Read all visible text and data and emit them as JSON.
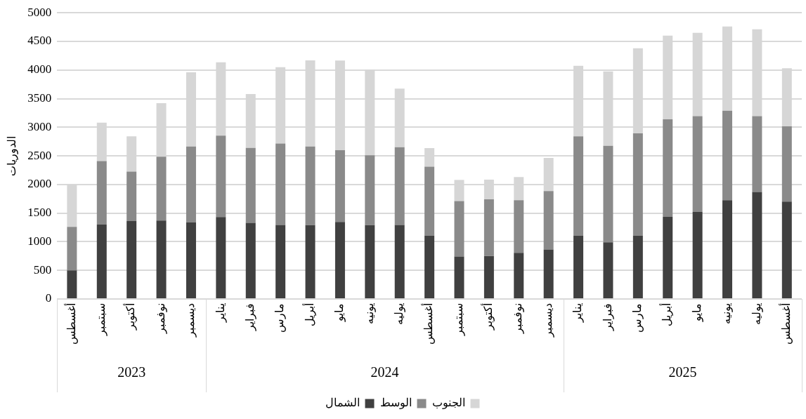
{
  "chart_data": {
    "type": "bar",
    "stacked": true,
    "ylabel": "الدوريات",
    "categories": [
      "أغسطس",
      "سبتمبر",
      "أكتوبر",
      "نوفمبر",
      "ديسمبر",
      "يناير",
      "فبراير",
      "مارس",
      "أبريل",
      "مايو",
      "يونيه",
      "يوليه",
      "أغسطس",
      "سبتمبر",
      "أكتوبر",
      "نوفمبر",
      "ديسمبر",
      "يناير",
      "فبراير",
      "مارس",
      "أبريل",
      "مايو",
      "يونيه",
      "يوليه",
      "أغسطس"
    ],
    "series": [
      {
        "name": "الشمال",
        "color": "#404040",
        "values": [
          500,
          1300,
          1360,
          1370,
          1335,
          1430,
          1330,
          1295,
          1290,
          1345,
          1290,
          1295,
          1105,
          740,
          750,
          805,
          865,
          1105,
          990,
          1105,
          1435,
          1520,
          1725,
          1870,
          1700
        ]
      },
      {
        "name": "الوسط",
        "color": "#8a8a8a",
        "values": [
          760,
          1110,
          865,
          1115,
          1330,
          1425,
          1310,
          1420,
          1375,
          1255,
          1220,
          1355,
          1205,
          970,
          990,
          920,
          1020,
          1735,
          1685,
          1790,
          1705,
          1675,
          1565,
          1325,
          1315
        ]
      },
      {
        "name": "الجنوب",
        "color": "#d6d6d6",
        "values": [
          740,
          670,
          615,
          935,
          1295,
          1280,
          940,
          1335,
          1505,
          1565,
          1495,
          1025,
          325,
          370,
          345,
          405,
          580,
          1235,
          1300,
          1485,
          1460,
          1455,
          1470,
          1515,
          1015
        ]
      }
    ],
    "ylim": [
      0,
      5000
    ],
    "yticks": [
      0,
      500,
      1000,
      1500,
      2000,
      2500,
      3000,
      3500,
      4000,
      4500,
      5000
    ],
    "grid": "y",
    "legend": "bottom",
    "annotations": [
      "2023",
      "2024",
      "2025"
    ]
  }
}
